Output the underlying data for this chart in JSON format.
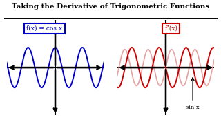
{
  "title": "Taking the Derivative of Trigonometric Functions",
  "title_fontsize": 7.5,
  "title_fontweight": "bold",
  "background_color": "#ffffff",
  "left_label": "f(x) = cos x",
  "left_box_color": "#0000cc",
  "right_label": "f’(x)",
  "right_box_color": "#cc0000",
  "annotation": "sin x",
  "left_wave_color": "#0000cc",
  "right_wave_color": "#cc0000",
  "right_wave_light_color": "#e8a0a0",
  "axis_color": "#000000",
  "wave_freq": 2.5,
  "wave_amp": 0.42,
  "wave_freq2": 2.9,
  "wave_amp2": 0.38
}
